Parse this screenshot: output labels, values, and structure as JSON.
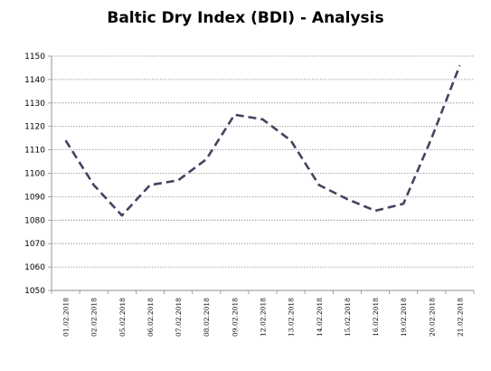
{
  "chart_data": {
    "type": "line",
    "title": "Baltic Dry Index (BDI) - Analysis",
    "xlabel": "",
    "ylabel": "",
    "ylim": [
      1050,
      1150
    ],
    "yticks": [
      "1050",
      "1060",
      "1070",
      "1080",
      "1090",
      "1100",
      "1110",
      "1120",
      "1130",
      "1140",
      "1150"
    ],
    "categories": [
      "01.02.2018",
      "02.02.2018",
      "05.02.2018",
      "06.02.2018",
      "07.02.2018",
      "08.02.2018",
      "09.02.2018",
      "12.02.2018",
      "13.02.2018",
      "14.02.2018",
      "15.02.2018",
      "16.02.2018",
      "19.02.2018",
      "20.02.2018",
      "21.02.2018"
    ],
    "series": [
      {
        "values": [
          1114,
          1095,
          1082,
          1095,
          1097,
          1106,
          1125,
          1123,
          1114,
          1095,
          1089,
          1084,
          1087,
          1115,
          1146
        ],
        "color": "#4a4060"
      }
    ],
    "grid": true,
    "grid_style": "dotted",
    "line_style": "dashed",
    "legend": "none"
  }
}
